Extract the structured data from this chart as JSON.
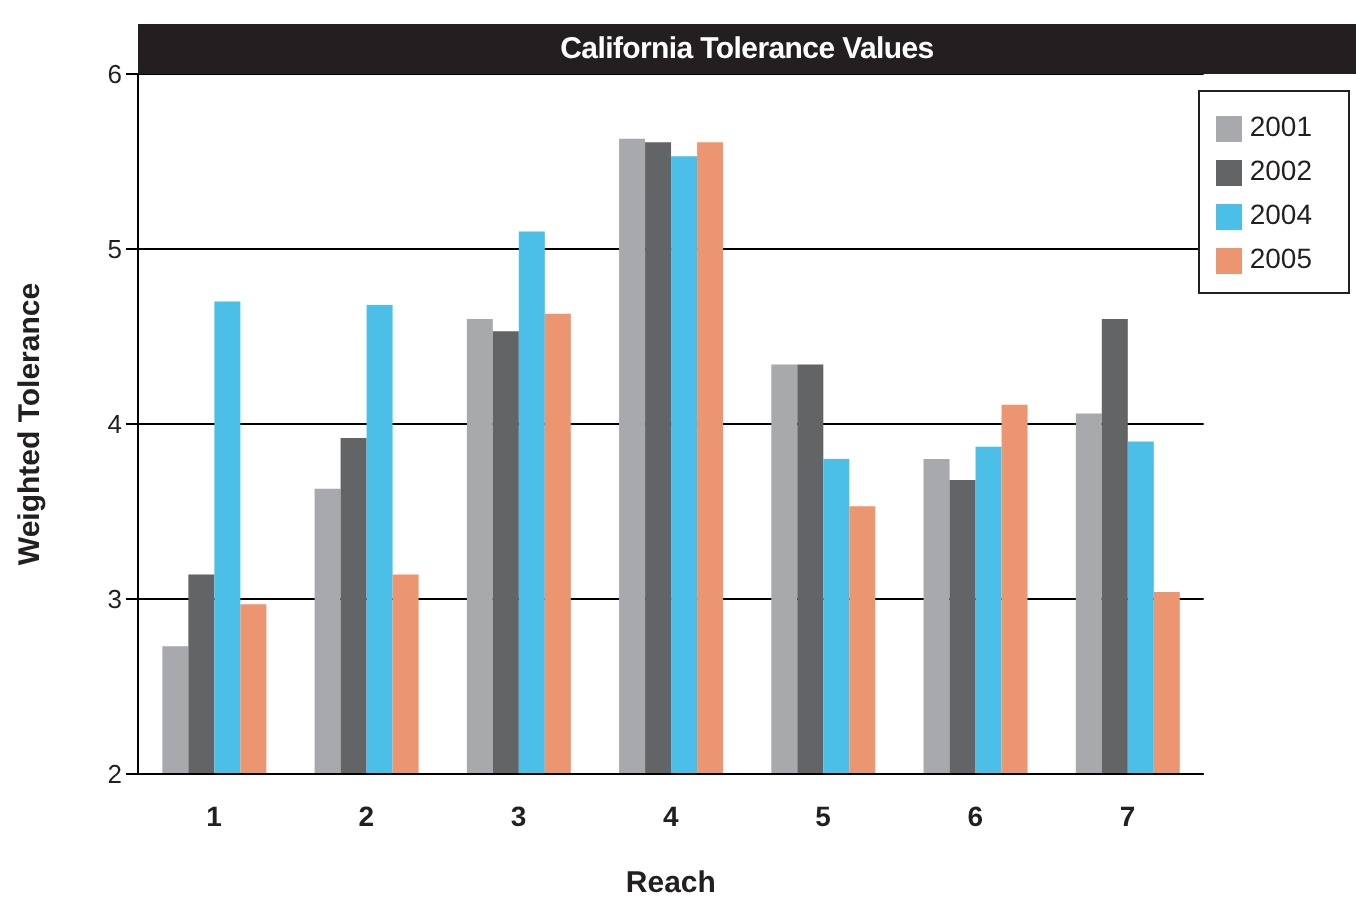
{
  "chart_data": {
    "type": "bar",
    "title": "California Tolerance Values",
    "xlabel": "Reach",
    "ylabel": "Weighted Tolerance",
    "categories": [
      "1",
      "2",
      "3",
      "4",
      "5",
      "6",
      "7"
    ],
    "series": [
      {
        "name": "2001",
        "color": "#a7a9ac",
        "values": [
          2.73,
          3.63,
          4.6,
          5.63,
          4.34,
          3.8,
          4.06
        ]
      },
      {
        "name": "2002",
        "color": "#636466",
        "values": [
          3.14,
          3.92,
          4.53,
          5.61,
          4.34,
          3.68,
          4.6
        ]
      },
      {
        "name": "2004",
        "color": "#4bbfe8",
        "values": [
          4.7,
          4.68,
          5.1,
          5.53,
          3.8,
          3.87,
          3.9
        ]
      },
      {
        "name": "2005",
        "color": "#eb9670",
        "values": [
          2.97,
          3.14,
          4.63,
          5.61,
          3.53,
          4.11,
          3.04
        ]
      }
    ],
    "ylim": [
      2,
      6
    ],
    "yticks": [
      2,
      3,
      4,
      5,
      6
    ],
    "grid": "y",
    "legend": "top right"
  }
}
